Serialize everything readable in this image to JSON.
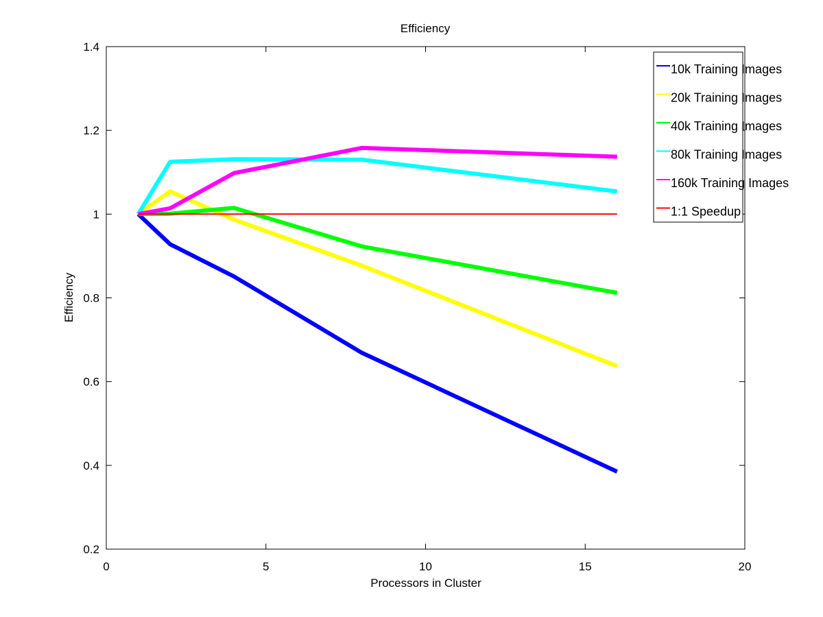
{
  "chart_data": {
    "type": "line",
    "title": "Efficiency",
    "xlabel": "Processors in Cluster",
    "ylabel": "Efficiency",
    "xlim": [
      0,
      20
    ],
    "ylim": [
      0.2,
      1.4
    ],
    "xticks": [
      0,
      5,
      10,
      15,
      20
    ],
    "xtick_labels": [
      "0",
      "5",
      "10",
      "15",
      "20"
    ],
    "yticks": [
      0.2,
      0.4,
      0.6,
      0.8,
      1.0,
      1.2,
      1.4
    ],
    "ytick_labels": [
      "0.2",
      "0.4",
      "0.6",
      "0.8",
      "1",
      "1.2",
      "1.4"
    ],
    "grid": false,
    "legend_position": "top-right",
    "series": [
      {
        "name": "10k Training Images",
        "color": "#0000ff",
        "thick": true,
        "x": [
          1,
          2,
          4,
          8,
          16
        ],
        "y": [
          1.0,
          0.928,
          0.851,
          0.669,
          0.385
        ]
      },
      {
        "name": "20k Training Images",
        "color": "#ffff00",
        "thick": true,
        "x": [
          1,
          2,
          4,
          8,
          16
        ],
        "y": [
          1.0,
          1.054,
          0.987,
          0.877,
          0.637
        ]
      },
      {
        "name": "40k Training Images",
        "color": "#00ff00",
        "thick": true,
        "x": [
          1,
          2,
          4,
          8,
          16
        ],
        "y": [
          1.0,
          1.001,
          1.015,
          0.923,
          0.812
        ]
      },
      {
        "name": "80k Training Images",
        "color": "#00ffff",
        "thick": true,
        "x": [
          1,
          2,
          4,
          8,
          16
        ],
        "y": [
          1.0,
          1.125,
          1.131,
          1.13,
          1.054
        ]
      },
      {
        "name": "160k Training Images",
        "color": "#ff00ff",
        "thick": true,
        "x": [
          1,
          2,
          4,
          8,
          16
        ],
        "y": [
          1.0,
          1.014,
          1.098,
          1.158,
          1.137
        ]
      },
      {
        "name": "1:1 Speedup",
        "color": "#ff0000",
        "thick": false,
        "x": [
          1,
          16
        ],
        "y": [
          1.0,
          1.0
        ]
      }
    ]
  }
}
